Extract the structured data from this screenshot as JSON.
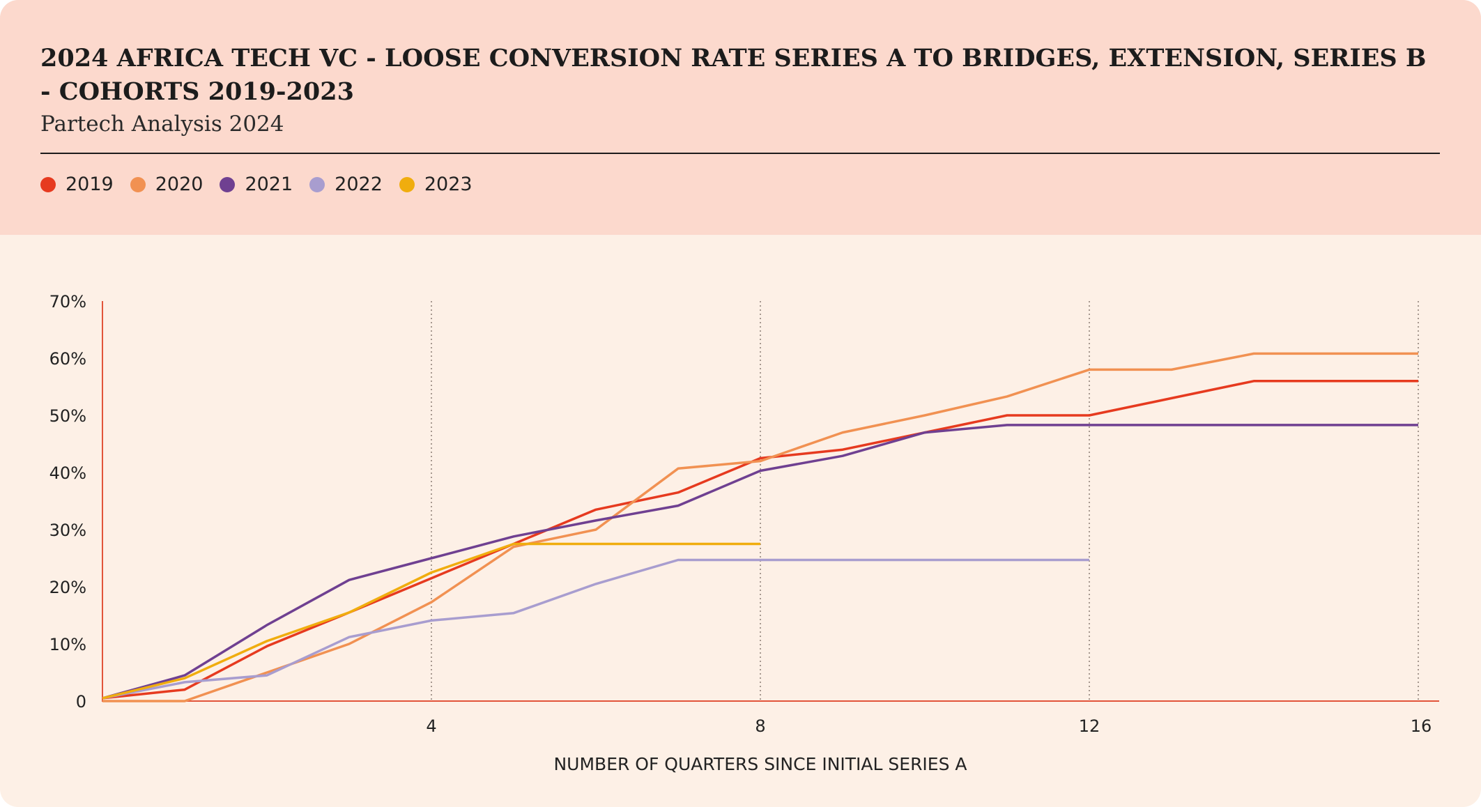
{
  "header": {
    "title": "2024 AFRICA TECH VC - LOOSE CONVERSION RATE SERIES A TO BRIDGES, EXTENSION, SERIES B - COHORTS 2019-2023",
    "subtitle": "Partech Analysis 2024"
  },
  "chart_data": {
    "type": "line",
    "title": "2024 AFRICA TECH VC - LOOSE CONVERSION RATE SERIES A TO BRIDGES, EXTENSION, SERIES B - COHORTS 2019-2023",
    "subtitle": "Partech Analysis 2024",
    "xlabel": "NUMBER OF QUARTERS SINCE INITIAL SERIES A",
    "ylabel": "",
    "xlim": [
      0,
      16
    ],
    "ylim": [
      0,
      70
    ],
    "x_ticks": [
      4,
      8,
      12,
      16
    ],
    "x_tick_labels": [
      "4",
      "8",
      "12",
      "16"
    ],
    "y_ticks": [
      0,
      10,
      20,
      30,
      40,
      50,
      60,
      70
    ],
    "y_tick_labels": [
      "0",
      "10%",
      "20%",
      "30%",
      "40%",
      "50%",
      "60%",
      "70%"
    ],
    "grid": "vertical dotted lines at x ticks",
    "legend_position": "top-left",
    "series": [
      {
        "name": "2019",
        "color": "#e63a1f",
        "x": [
          0,
          1,
          2,
          3,
          4,
          5,
          6,
          7,
          8,
          9,
          10,
          11,
          12,
          13,
          14,
          15,
          16
        ],
        "values": [
          0.5,
          2,
          9.6,
          15.5,
          21.5,
          27.5,
          33.5,
          36.5,
          42.5,
          44,
          47,
          50,
          50,
          53,
          56,
          56,
          56
        ]
      },
      {
        "name": "2020",
        "color": "#f19152",
        "x": [
          0,
          1,
          2,
          3,
          4,
          5,
          6,
          7,
          8,
          9,
          10,
          11,
          12,
          13,
          14,
          15,
          16
        ],
        "values": [
          0,
          0,
          5,
          10,
          17.3,
          27,
          30,
          40.7,
          42,
          47,
          50,
          53.3,
          58,
          58,
          60.8,
          60.8,
          60.8
        ]
      },
      {
        "name": "2021",
        "color": "#6f4091",
        "x": [
          0,
          1,
          2,
          3,
          4,
          5,
          6,
          7,
          8,
          9,
          10,
          11,
          12,
          13,
          14,
          15,
          16
        ],
        "values": [
          0.5,
          4.5,
          13.3,
          21.2,
          25,
          28.8,
          31.6,
          34.2,
          40.3,
          42.9,
          47,
          48.3,
          48.3,
          48.3,
          48.3,
          48.3,
          48.3
        ]
      },
      {
        "name": "2022",
        "color": "#a89dcf",
        "x": [
          0,
          1,
          2,
          3,
          4,
          5,
          6,
          7,
          8,
          9,
          10,
          11,
          12
        ],
        "values": [
          0.5,
          3.3,
          4.5,
          11.2,
          14.1,
          15.4,
          20.5,
          24.7,
          24.7,
          24.7,
          24.7,
          24.7,
          24.7
        ]
      },
      {
        "name": "2023",
        "color": "#f0ad0e",
        "x": [
          0,
          1,
          2,
          3,
          4,
          5,
          6,
          7,
          8
        ],
        "values": [
          0.5,
          4,
          10.5,
          15.5,
          22.5,
          27.5,
          27.5,
          27.5,
          27.5
        ]
      }
    ]
  }
}
